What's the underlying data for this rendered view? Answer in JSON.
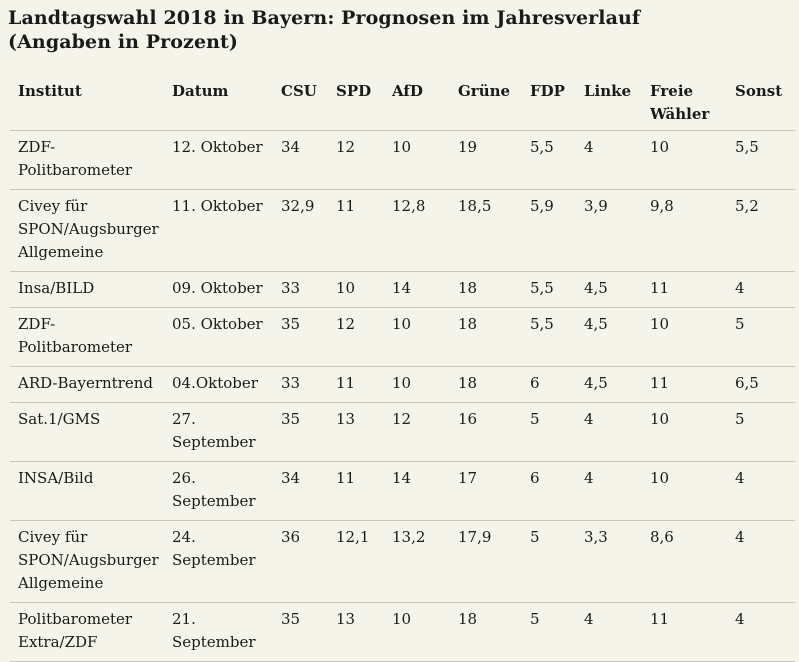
{
  "page": {
    "title": "Landtagswahl 2018 in Bayern: Prognosen im Jahresverlauf (Angaben in Prozent)"
  },
  "colors": {
    "background": "#f4f4ea",
    "text": "#1a1a1a",
    "row_border": "#c9c8bf"
  },
  "chart_data": {
    "type": "table",
    "title": "Landtagswahl 2018 in Bayern: Prognosen im Jahresverlauf (Angaben in Prozent)",
    "columns": [
      "Institut",
      "Datum",
      "CSU",
      "SPD",
      "AfD",
      "Grüne",
      "FDP",
      "Linke",
      "Freie Wähler",
      "Sonst"
    ],
    "rows": [
      [
        "ZDF-Politbarometer",
        "12. Oktober",
        "34",
        "12",
        "10",
        "19",
        "5,5",
        "4",
        "10",
        "5,5"
      ],
      [
        "Civey für SPON/Augsburger Allgemeine",
        "11. Oktober",
        "32,9",
        "11",
        "12,8",
        "18,5",
        "5,9",
        "3,9",
        "9,8",
        "5,2"
      ],
      [
        "Insa/BILD",
        "09. Oktober",
        "33",
        "10",
        "14",
        "18",
        "5,5",
        "4,5",
        "11",
        "4"
      ],
      [
        "ZDF-Politbarometer",
        "05. Oktober",
        "35",
        "12",
        "10",
        "18",
        "5,5",
        "4,5",
        "10",
        "5"
      ],
      [
        "ARD-Bayerntrend",
        "04.Oktober",
        "33",
        "11",
        "10",
        "18",
        "6",
        "4,5",
        "11",
        "6,5"
      ],
      [
        "Sat.1/GMS",
        "27. September",
        "35",
        "13",
        "12",
        "16",
        "5",
        "4",
        "10",
        "5"
      ],
      [
        "INSA/Bild",
        "26. September",
        "34",
        "11",
        "14",
        "17",
        "6",
        "4",
        "10",
        "4"
      ],
      [
        "Civey für SPON/Augsburger Allgemeine",
        "24. September",
        "36",
        "12,1",
        "13,2",
        "17,9",
        "5",
        "3,3",
        "8,6",
        "4"
      ],
      [
        "Politbarometer Extra/ZDF",
        "21. September",
        "35",
        "13",
        "10",
        "18",
        "5",
        "4",
        "11",
        "4"
      ]
    ]
  }
}
